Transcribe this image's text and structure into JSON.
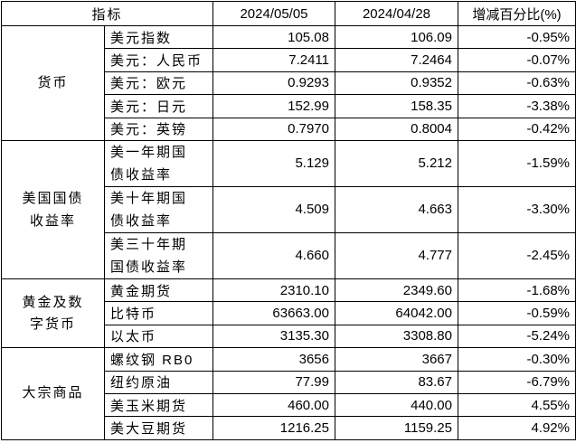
{
  "header": {
    "indicator": "指标",
    "date1": "2024/05/05",
    "date2": "2024/04/28",
    "change": "增减百分比(%)"
  },
  "groups": [
    {
      "label": "货币",
      "rows": [
        {
          "name": "美元指数",
          "v1": "105.08",
          "v2": "106.09",
          "chg": "-0.95%"
        },
        {
          "name": "美元：人民币",
          "v1": "7.2411",
          "v2": "7.2464",
          "chg": "-0.07%"
        },
        {
          "name": "美元：欧元",
          "v1": "0.9293",
          "v2": "0.9352",
          "chg": "-0.63%"
        },
        {
          "name": "美元：日元",
          "v1": "152.99",
          "v2": "158.35",
          "chg": "-3.38%"
        },
        {
          "name": "美元：英镑",
          "v1": "0.7970",
          "v2": "0.8004",
          "chg": "-0.42%"
        }
      ]
    },
    {
      "label": "美国国债收益率",
      "rows": [
        {
          "name": "美一年期国债收益率",
          "v1": "5.129",
          "v2": "5.212",
          "chg": "-1.59%"
        },
        {
          "name": "美十年期国债收益率",
          "v1": "4.509",
          "v2": "4.663",
          "chg": "-3.30%"
        },
        {
          "name": "美三十年期国债收益率",
          "v1": "4.660",
          "v2": "4.777",
          "chg": "-2.45%"
        }
      ]
    },
    {
      "label": "黄金及数字货币",
      "rows": [
        {
          "name": "黄金期货",
          "v1": "2310.10",
          "v2": "2349.60",
          "chg": "-1.68%"
        },
        {
          "name": "比特币",
          "v1": "63663.00",
          "v2": "64042.00",
          "chg": "-0.59%"
        },
        {
          "name": "以太币",
          "v1": "3135.30",
          "v2": "3308.80",
          "chg": "-5.24%"
        }
      ]
    },
    {
      "label": "大宗商品",
      "rows": [
        {
          "name": "螺纹钢 RB0",
          "v1": "3656",
          "v2": "3667",
          "chg": "-0.30%"
        },
        {
          "name": "纽约原油",
          "v1": "77.99",
          "v2": "83.67",
          "chg": "-6.79%"
        },
        {
          "name": "美玉米期货",
          "v1": "460.00",
          "v2": "440.00",
          "chg": "4.55%"
        },
        {
          "name": "美大豆期货",
          "v1": "1216.25",
          "v2": "1159.25",
          "chg": "4.92%"
        }
      ]
    }
  ]
}
